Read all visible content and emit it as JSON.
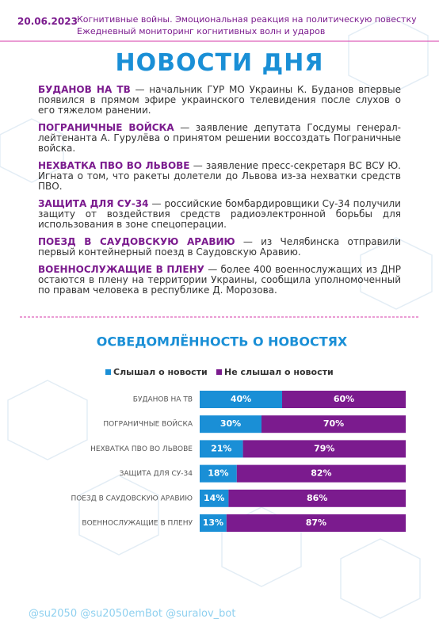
{
  "header": {
    "date": "20.06.2023",
    "line1": "Когнитивные войны. Эмоциональная реакция на политическую повестку",
    "line2": "Ежедневный мониторинг когнитивных волн и ударов"
  },
  "title": "НОВОСТИ ДНЯ",
  "news": [
    {
      "head": "БУДАНОВ НА ТВ",
      "text": "— начальник ГУР МО Украины К. Буданов впервые появился в прямом эфире украинского телевидения после слухов о его тяжелом ранении."
    },
    {
      "head": "ПОГРАНИЧНЫЕ ВОЙСКА",
      "text": "— заявление депутата Госдумы генерал-лейтенанта А. Гурулёва о принятом решении воссоздать Пограничные войска."
    },
    {
      "head": "НЕХВАТКА ПВО ВО ЛЬВОВЕ",
      "text": "— заявление пресс-секретаря ВС ВСУ Ю. Игната о том, что ракеты долетели до Львова из-за нехватки средств ПВО."
    },
    {
      "head": "ЗАЩИТА ДЛЯ СУ-34",
      "text": "— российские бомбардировщики Су-34 получили защиту от воздействия средств радиоэлектронной борьбы для использования в зоне спецоперации."
    },
    {
      "head": "ПОЕЗД В САУДОВСКУЮ АРАВИЮ",
      "text": "— из Челябинска отправили первый контейнерный поезд в Саудовскую Аравию."
    },
    {
      "head": "ВОЕННОСЛУЖАЩИЕ В ПЛЕНУ",
      "text": "— более 400 военнослужащих из ДНР остаются в плену на территории Украины, сообщила уполномоченный по правам человека в республике Д. Морозова."
    }
  ],
  "chart_data": {
    "type": "stacked-bar",
    "title": "ОСВЕДОМЛЁННОСТЬ О НОВОСТЯХ",
    "categories": [
      "БУДАНОВ НА ТВ",
      "ПОГРАНИЧНЫЕ ВОЙСКА",
      "НЕХВАТКА ПВО ВО ЛЬВОВЕ",
      "ЗАЩИТА ДЛЯ СУ-34",
      "ПОЕЗД В САУДОВСКУЮ АРАВИЮ",
      "ВОЕННОСЛУЖАЩИЕ В ПЛЕНУ"
    ],
    "series": [
      {
        "name": "Слышал о новости",
        "color": "#1a8fd6",
        "values": [
          40,
          30,
          21,
          18,
          14,
          13
        ],
        "value_labels": [
          "40%",
          "30%",
          "21%",
          "18%",
          "14%",
          "13%"
        ]
      },
      {
        "name": "Не слышал о новости",
        "color": "#7b1b8e",
        "values": [
          60,
          70,
          79,
          82,
          86,
          87
        ],
        "value_labels": [
          "60%",
          "70%",
          "79%",
          "82%",
          "86%",
          "87%"
        ]
      }
    ],
    "xlim": [
      0,
      100
    ]
  },
  "footer": "@su2050 @su2050emBot @suralov_bot"
}
